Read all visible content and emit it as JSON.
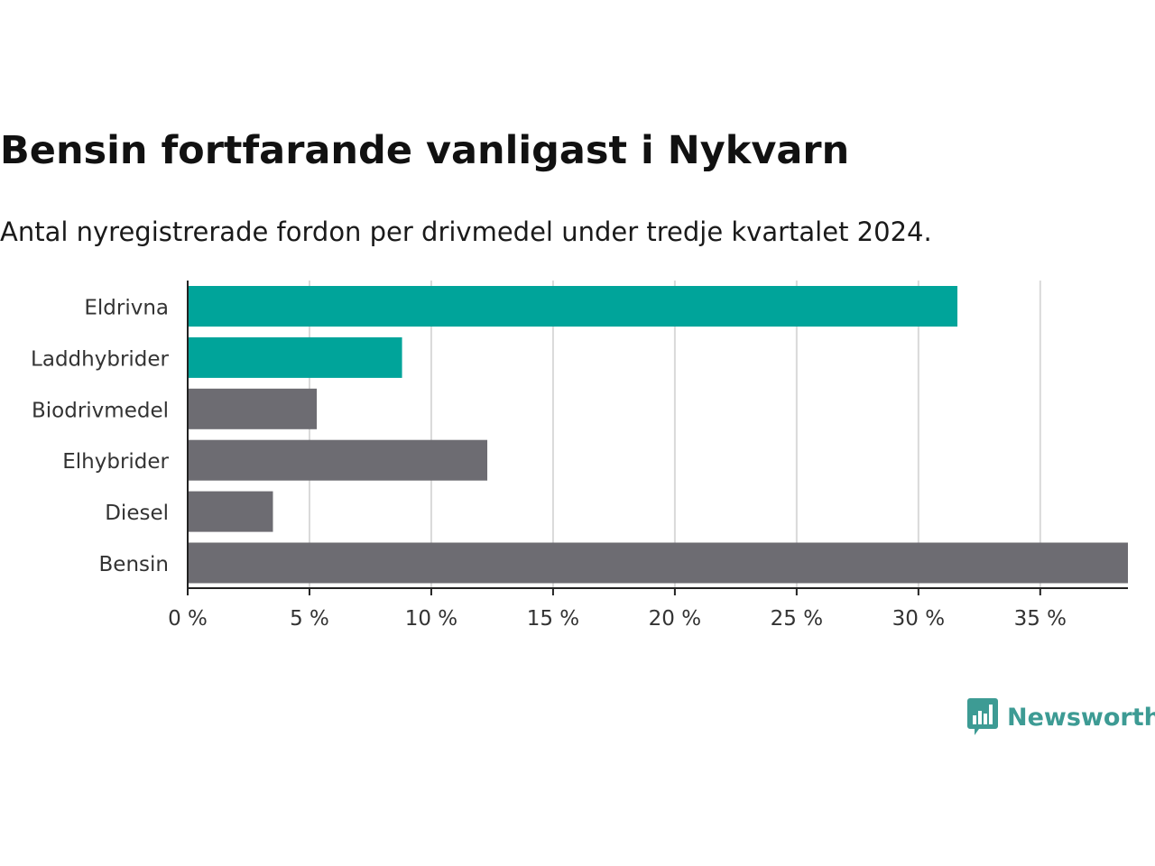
{
  "chart_data": {
    "type": "bar",
    "orientation": "horizontal",
    "title": "Bensin fortfarande vanligast i Nykvarn",
    "subtitle": "Antal nyregistrerade fordon per drivmedel under tredje kvartalet 2024.",
    "categories": [
      "Eldrivna",
      "Laddhybrider",
      "Biodrivmedel",
      "Elhybrider",
      "Diesel",
      "Bensin"
    ],
    "values": [
      31.6,
      8.8,
      5.3,
      12.3,
      3.5,
      38.6
    ],
    "bar_colors": [
      "#00a49a",
      "#00a49a",
      "#6d6c72",
      "#6d6c72",
      "#6d6c72",
      "#6d6c72"
    ],
    "xlabel": "",
    "ylabel": "",
    "xlim": [
      0,
      38.6
    ],
    "x_ticks": [
      0,
      5,
      10,
      15,
      20,
      25,
      30,
      35
    ],
    "x_tick_labels": [
      "0 %",
      "5 %",
      "10 %",
      "15 %",
      "20 %",
      "25 %",
      "30 %",
      "35 %"
    ],
    "grid": true
  },
  "branding": {
    "logo_text": "Newsworthy",
    "logo_color": "#3d9b94"
  }
}
